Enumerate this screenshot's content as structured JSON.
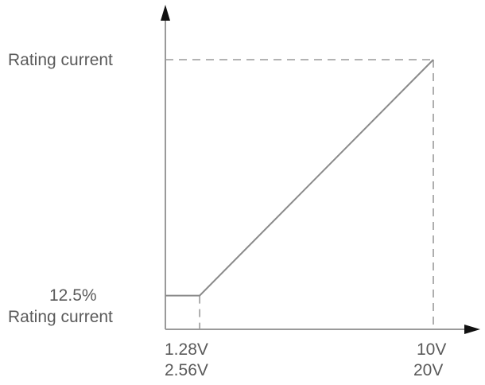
{
  "chart_data": {
    "type": "line",
    "y_labels": {
      "rated": "Rating current",
      "min_top": "12.5%",
      "min_bottom": "Rating current"
    },
    "x_labels": {
      "low_line1": "1.28V",
      "low_line2": "2.56V",
      "high_line1": "10V",
      "high_line2": "20V"
    },
    "series": [
      {
        "x": [
          0,
          1.28,
          10
        ],
        "y": [
          12.5,
          12.5,
          100
        ]
      }
    ],
    "x_units_note_rows": [
      "1.28V / 10V",
      "2.56V / 20V"
    ],
    "y_unit": "% of rating current",
    "xlim": [
      0,
      10
    ],
    "ylim": [
      0,
      100
    ],
    "guides": "dashed",
    "colors": {
      "axis": "#9a9a9a",
      "line": "#8a8a8a",
      "text": "#5a5a5a",
      "arrow": "#111111"
    }
  }
}
